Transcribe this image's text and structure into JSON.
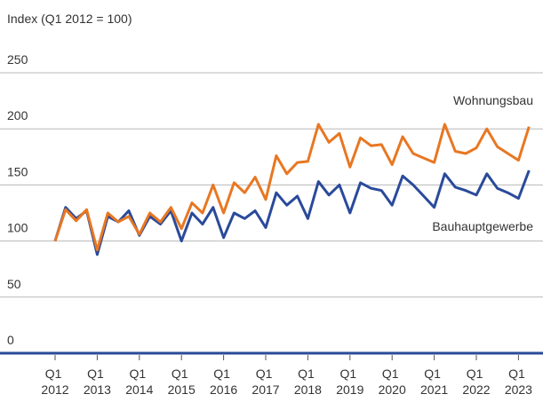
{
  "chart_data": {
    "type": "line",
    "y_axis_label": "Index (Q1 2012 = 100)",
    "categories": [
      "Q1 2012",
      null,
      null,
      null,
      "Q1 2013",
      null,
      null,
      null,
      "Q1 2014",
      null,
      null,
      null,
      "Q1 2015",
      null,
      null,
      null,
      "Q1 2016",
      null,
      null,
      null,
      "Q1 2017",
      null,
      null,
      null,
      "Q1 2018",
      null,
      null,
      null,
      "Q1 2019",
      null,
      null,
      null,
      "Q1 2020",
      null,
      null,
      null,
      "Q1 2021",
      null,
      null,
      null,
      "Q1 2022",
      null,
      null,
      null,
      "Q1 2023",
      null
    ],
    "series": [
      {
        "name": "Wohnungsbau",
        "color": "#e87722",
        "values": [
          100,
          128,
          118,
          128,
          92,
          125,
          117,
          122,
          106,
          125,
          117,
          130,
          111,
          134,
          125,
          150,
          125,
          152,
          143,
          157,
          137,
          176,
          160,
          170,
          171,
          204,
          188,
          196,
          166,
          192,
          185,
          186,
          168,
          193,
          178,
          174,
          170,
          204,
          180,
          178,
          183,
          200,
          184,
          178,
          172,
          202
        ]
      },
      {
        "name": "Bauhauptgewerbe",
        "color": "#2a4a9a",
        "values": [
          100,
          130,
          120,
          127,
          88,
          122,
          117,
          127,
          105,
          122,
          115,
          127,
          100,
          125,
          115,
          130,
          103,
          125,
          120,
          127,
          112,
          143,
          132,
          140,
          120,
          153,
          141,
          150,
          125,
          152,
          147,
          145,
          132,
          158,
          150,
          140,
          130,
          160,
          148,
          145,
          141,
          160,
          147,
          143,
          138,
          163
        ]
      }
    ],
    "ylim": [
      0,
      250
    ],
    "yticks": [
      0,
      50,
      100,
      150,
      200,
      250
    ],
    "grid": true
  }
}
